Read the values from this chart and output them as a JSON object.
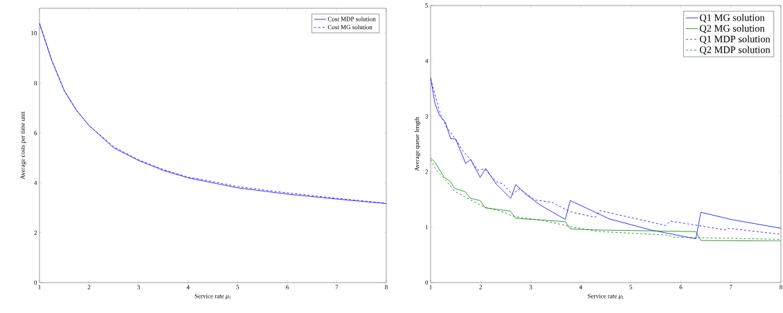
{
  "chart_data": [
    {
      "type": "line",
      "xlabel": "Service rate *μ*$_{1}$",
      "ylabel": "Average costs per time unit",
      "xlim": [
        1,
        8
      ],
      "ylim": [
        0,
        11
      ],
      "xticks": [
        1,
        2,
        3,
        4,
        5,
        6,
        7,
        8
      ],
      "yticks": [
        0,
        2,
        4,
        6,
        8,
        10
      ],
      "legend": "top right",
      "grid": false,
      "series": [
        {
          "name": "Cost MDP solution",
          "color": "#0000ff",
          "line_style": "solid",
          "x": [
            1,
            1.25,
            1.5,
            1.75,
            2,
            2.5,
            3,
            3.5,
            4,
            4.5,
            5,
            6,
            7,
            8
          ],
          "values": [
            10.4,
            8.9,
            7.7,
            6.9,
            6.3,
            5.4,
            4.9,
            4.5,
            4.2,
            4.0,
            3.8,
            3.55,
            3.35,
            3.17
          ]
        },
        {
          "name": "Cost MG solution",
          "color": "#0000ff",
          "line_style": "dashed",
          "x": [
            1,
            1.25,
            1.5,
            1.75,
            2,
            2.5,
            3,
            3.5,
            4,
            4.5,
            5,
            6,
            7,
            8
          ],
          "values": [
            10.4,
            8.9,
            7.7,
            6.9,
            6.3,
            5.45,
            4.92,
            4.53,
            4.23,
            4.05,
            3.85,
            3.6,
            3.38,
            3.18
          ]
        }
      ]
    },
    {
      "type": "line",
      "xlabel": "Service rate *μ*$_{1}$",
      "ylabel": "Average queue length",
      "xlim": [
        1,
        8
      ],
      "ylim": [
        0,
        5
      ],
      "xticks": [
        1,
        2,
        3,
        4,
        5,
        6,
        7,
        8
      ],
      "yticks": [
        0,
        1,
        2,
        3,
        4,
        5
      ],
      "legend": "top right",
      "grid": false,
      "series": [
        {
          "name": "Q1 MG solution",
          "color": "#0000ff",
          "line_style": "solid",
          "x": [
            1,
            1.09,
            1.18,
            1.29,
            1.4,
            1.5,
            1.7,
            1.8,
            1.99,
            2.1,
            2.31,
            2.6,
            2.7,
            2.91,
            3.19,
            3.69,
            3.79,
            4.29,
            4.57,
            5.4,
            6.3,
            6.4,
            7,
            8
          ],
          "values": [
            3.7,
            3.22,
            3.01,
            2.9,
            2.6,
            2.59,
            2.15,
            2.22,
            1.9,
            2.06,
            1.78,
            1.52,
            1.77,
            1.59,
            1.4,
            1.14,
            1.48,
            1.27,
            1.15,
            0.95,
            0.79,
            1.27,
            1.14,
            0.98
          ]
        },
        {
          "name": "Q2 MG solution",
          "color": "#008000",
          "line_style": "solid",
          "x": [
            1,
            1.09,
            1.27,
            1.39,
            1.48,
            1.69,
            1.8,
            1.99,
            2.09,
            2.59,
            2.7,
            3.69,
            3.79,
            4.29,
            6.3,
            6.4,
            8
          ],
          "values": [
            2.25,
            2.17,
            1.9,
            1.83,
            1.7,
            1.64,
            1.52,
            1.48,
            1.35,
            1.29,
            1.16,
            1.1,
            0.97,
            0.95,
            0.92,
            0.76,
            0.75
          ]
        },
        {
          "name": "Q1 MDP solution",
          "color": "#0000ff",
          "line_style": "dashed",
          "x": [
            1,
            1.2,
            1.32,
            1.5,
            1.64,
            1.78,
            1.94,
            2.08,
            2.31,
            2.45,
            2.63,
            2.77,
            3.09,
            3.42,
            3.79,
            3.92,
            4.29,
            4.38,
            5.7,
            5.79,
            6.9,
            6.96,
            8
          ],
          "values": [
            3.68,
            3.03,
            2.8,
            2.59,
            2.38,
            2.24,
            2.03,
            2.05,
            1.82,
            1.78,
            1.59,
            1.69,
            1.49,
            1.45,
            1.28,
            1.25,
            1.18,
            1.3,
            1.03,
            1.11,
            0.95,
            0.98,
            0.87
          ]
        },
        {
          "name": "Q2 MDP solution",
          "color": "#008000",
          "line_style": "dashed",
          "x": [
            1,
            1.11,
            1.27,
            1.48,
            1.8,
            2.08,
            2.36,
            2.68,
            3.19,
            3.51,
            3.79,
            4.38,
            5.7,
            5.86,
            6.9,
            8
          ],
          "values": [
            2.22,
            2.03,
            1.88,
            1.65,
            1.49,
            1.36,
            1.3,
            1.19,
            1.13,
            1.07,
            1.01,
            0.92,
            0.86,
            0.82,
            0.8,
            0.78
          ]
        }
      ]
    }
  ]
}
